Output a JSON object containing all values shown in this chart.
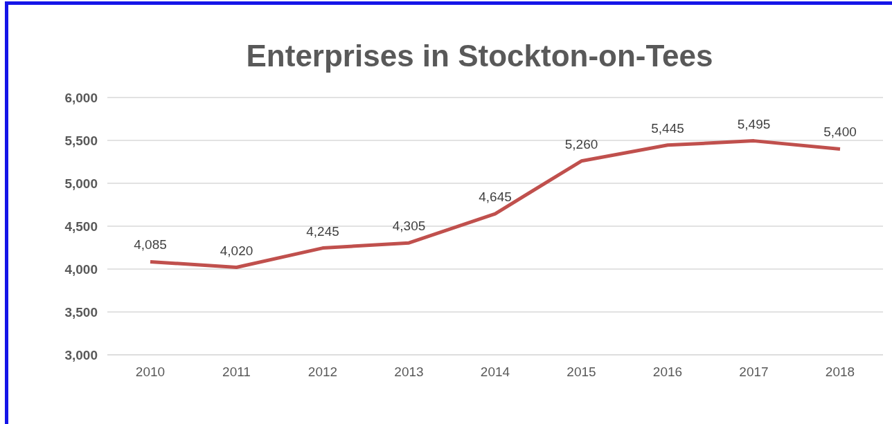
{
  "chart_data": {
    "type": "line",
    "title": "Enterprises in Stockton-on-Tees",
    "categories": [
      "2010",
      "2011",
      "2012",
      "2013",
      "2014",
      "2015",
      "2016",
      "2017",
      "2018"
    ],
    "series": [
      {
        "color": "#c0504d",
        "values": [
          4085,
          4020,
          4245,
          4305,
          4645,
          5260,
          5445,
          5495,
          5400
        ],
        "value_labels": [
          "4,085",
          "4,020",
          "4,245",
          "4,305",
          "4,645",
          "5,260",
          "5,445",
          "5,495",
          "5,400"
        ]
      }
    ],
    "ylim": [
      3000,
      6000
    ],
    "yticks": [
      {
        "value": 3000,
        "label": "3,000"
      },
      {
        "value": 3500,
        "label": "3,500"
      },
      {
        "value": 4000,
        "label": "4,000"
      },
      {
        "value": 4500,
        "label": "4,500"
      },
      {
        "value": 5000,
        "label": "5,000"
      },
      {
        "value": 5500,
        "label": "5,500"
      },
      {
        "value": 6000,
        "label": "6,000"
      }
    ],
    "grid": "y",
    "marker": "none",
    "line_style": "solid",
    "legend": false
  }
}
